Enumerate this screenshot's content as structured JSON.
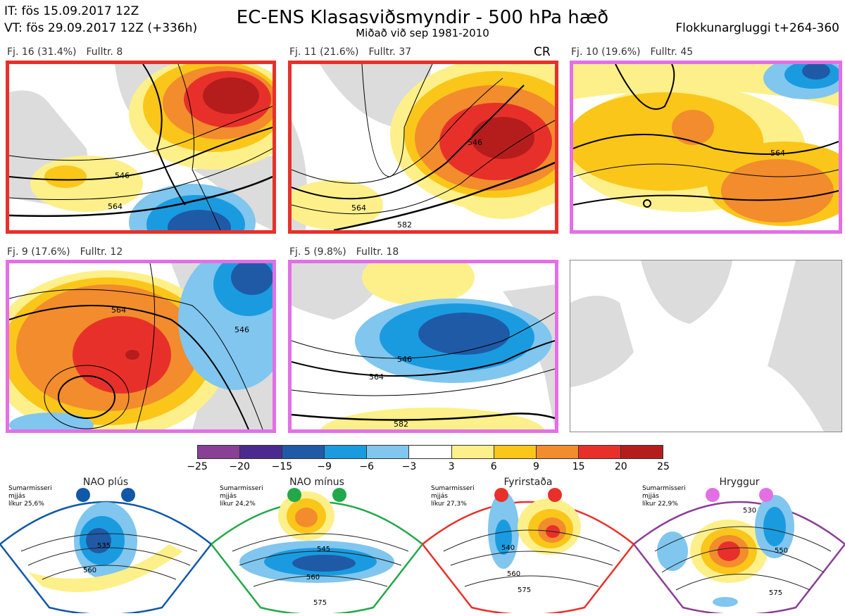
{
  "header": {
    "it": "IT: fös 15.09.2017 12Z",
    "vt": "VT: fös 29.09.2017 12Z  (+336h)",
    "title": "EC-ENS Klasasviðsmyndir - 500 hPa hæð",
    "subtitle": "Miðað við sep 1981-2010",
    "window": "Flokkunargluggi t+264-360"
  },
  "panels": [
    {
      "cluster": "Fj. 16 (31.4%)",
      "members": "Fulltr. 8",
      "border": "#e8302a"
    },
    {
      "cluster": "Fj. 11 (21.6%)",
      "members": "Fulltr. 37",
      "border": "#e8302a",
      "tag": "CR"
    },
    {
      "cluster": "Fj. 10 (19.6%)",
      "members": "Fulltr. 45",
      "border": "#e36fe6"
    },
    {
      "cluster": "Fj. 9 (17.6%)",
      "members": "Fulltr. 12",
      "border": "#e36fe6"
    },
    {
      "cluster": "Fj. 5 (9.8%)",
      "members": "Fulltr. 18",
      "border": "#e36fe6"
    }
  ],
  "contour_labels": [
    "546",
    "564",
    "582"
  ],
  "colorbar": {
    "ticks": [
      "−25",
      "−20",
      "−15",
      "−9",
      "−6",
      "−3",
      "3",
      "6",
      "9",
      "15",
      "20",
      "25"
    ],
    "colors": [
      "#8a3f96",
      "#4b2a8f",
      "#1f5aa7",
      "#1a9be0",
      "#80c6ef",
      "#ffffff",
      "#fdf08a",
      "#fbc61a",
      "#f28c2c",
      "#e8302a",
      "#b51d1d"
    ]
  },
  "regimes": [
    {
      "name": "NAO plús",
      "desc": [
        "Sumarmisseri",
        "mjjás",
        "líkur 25,6%"
      ],
      "color": "#1158a8",
      "labels": [
        "535",
        "560"
      ]
    },
    {
      "name": "NAO mínus",
      "desc": [
        "Sumarmisseri",
        "mjjás",
        "líkur 24,2%"
      ],
      "color": "#22a84a",
      "labels": [
        "545",
        "560",
        "575"
      ]
    },
    {
      "name": "Fyrirstaða",
      "desc": [
        "Sumarmisseri",
        "mjjás",
        "líkur 27,3%"
      ],
      "color": "#e8302a",
      "labels": [
        "540",
        "560",
        "575"
      ]
    },
    {
      "name": "Hryggur",
      "desc": [
        "Sumarmisseri",
        "mjjás",
        "líkur 22,9%"
      ],
      "color": "#e36fe6",
      "labels": [
        "530",
        "550",
        "575"
      ]
    }
  ]
}
